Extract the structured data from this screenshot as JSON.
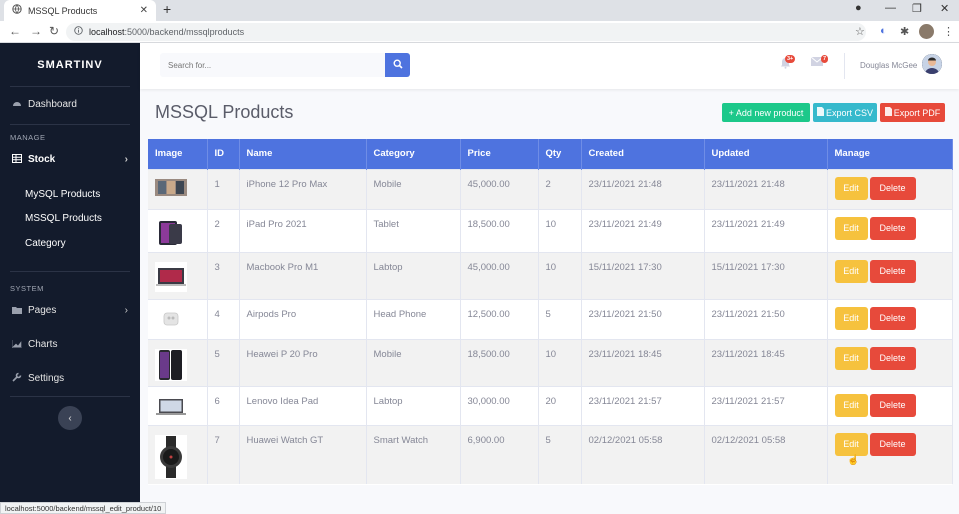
{
  "browser": {
    "tab_title": "MSSQL Products",
    "url_host": "localhost",
    "url_path": ":5000/backend/mssqlproducts",
    "status_url": "localhost:5000/backend/mssql_edit_product/10"
  },
  "sidebar": {
    "brand": "SMARTINV",
    "dashboard": "Dashboard",
    "heading_manage": "MANAGE",
    "stock": "Stock",
    "sub_items": [
      "MySQL Products",
      "MSSQL Products",
      "Category"
    ],
    "heading_system": "SYSTEM",
    "pages": "Pages",
    "charts": "Charts",
    "settings": "Settings"
  },
  "topbar": {
    "search_placeholder": "Search for...",
    "alerts_badge": "3+",
    "messages_badge": "7",
    "user_name": "Douglas McGee"
  },
  "main": {
    "title": "MSSQL Products",
    "add_label": "Add new product",
    "csv_label": "Export CSV",
    "pdf_label": "Export PDF"
  },
  "table": {
    "headers": [
      "Image",
      "ID",
      "Name",
      "Category",
      "Price",
      "Qty",
      "Created",
      "Updated",
      "Manage"
    ],
    "edit_label": "Edit",
    "delete_label": "Delete",
    "rows": [
      {
        "id": "1",
        "name": "iPhone 12 Pro Max",
        "category": "Mobile",
        "price": "45,000.00",
        "qty": "2",
        "created": "23/11/2021 21:48",
        "updated": "23/11/2021 21:48"
      },
      {
        "id": "2",
        "name": "iPad Pro 2021",
        "category": "Tablet",
        "price": "18,500.00",
        "qty": "10",
        "created": "23/11/2021 21:49",
        "updated": "23/11/2021 21:49"
      },
      {
        "id": "3",
        "name": "Macbook Pro M1",
        "category": "Labtop",
        "price": "45,000.00",
        "qty": "10",
        "created": "15/11/2021 17:30",
        "updated": "15/11/2021 17:30"
      },
      {
        "id": "4",
        "name": "Airpods Pro",
        "category": "Head Phone",
        "price": "12,500.00",
        "qty": "5",
        "created": "23/11/2021 21:50",
        "updated": "23/11/2021 21:50"
      },
      {
        "id": "5",
        "name": "Heawei P 20 Pro",
        "category": "Mobile",
        "price": "18,500.00",
        "qty": "10",
        "created": "23/11/2021 18:45",
        "updated": "23/11/2021 18:45"
      },
      {
        "id": "6",
        "name": "Lenovo Idea Pad",
        "category": "Labtop",
        "price": "30,000.00",
        "qty": "20",
        "created": "23/11/2021 21:57",
        "updated": "23/11/2021 21:57"
      },
      {
        "id": "7",
        "name": "Huawei Watch GT",
        "category": "Smart Watch",
        "price": "6,900.00",
        "qty": "5",
        "created": "02/12/2021 05:58",
        "updated": "02/12/2021 05:58"
      }
    ]
  },
  "colors": {
    "primary": "#4e73df",
    "sidebar_bg": "#131b2c",
    "success": "#1cc88a",
    "info": "#36b9cc",
    "danger": "#e74a3b",
    "warning": "#f6c23e"
  }
}
